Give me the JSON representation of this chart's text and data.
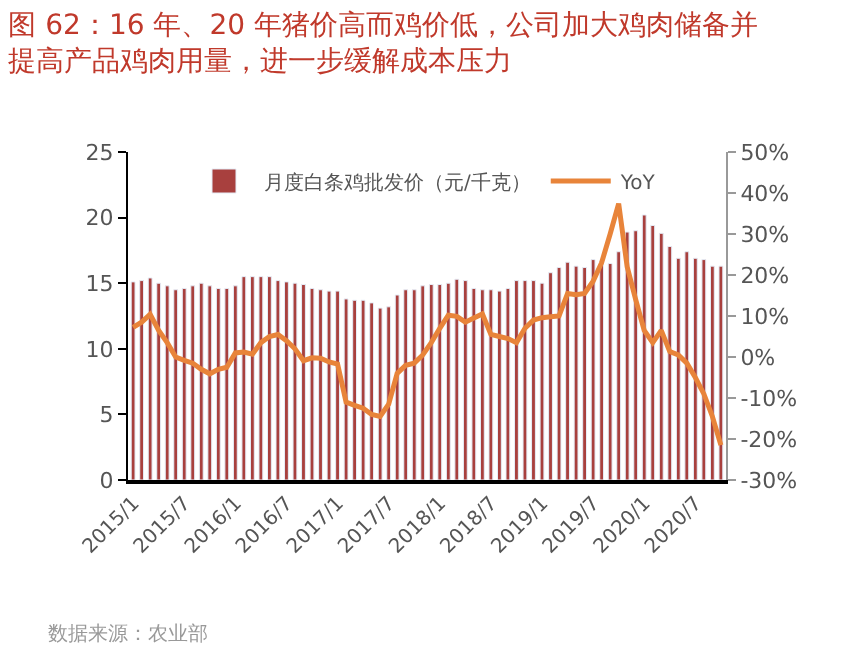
{
  "chart_data": {
    "type": "bar",
    "title": "图 62：16 年、20 年猪价高而鸡价低，公司加大鸡肉储备并提高产品鸡肉用量，进一步缓解成本压力",
    "categories": [
      "2015/1",
      null,
      null,
      null,
      null,
      null,
      "2015/7",
      null,
      null,
      null,
      null,
      null,
      "2016/1",
      null,
      null,
      null,
      null,
      null,
      "2016/7",
      null,
      null,
      null,
      null,
      null,
      "2017/1",
      null,
      null,
      null,
      null,
      null,
      "2017/7",
      null,
      null,
      null,
      null,
      null,
      "2018/1",
      null,
      null,
      null,
      null,
      null,
      "2018/7",
      null,
      null,
      null,
      null,
      null,
      "2019/1",
      null,
      null,
      null,
      null,
      null,
      "2019/7",
      null,
      null,
      null,
      null,
      null,
      "2020/1",
      null,
      null,
      null,
      null,
      null,
      "2020/7",
      null,
      null,
      null
    ],
    "series": [
      {
        "name": "月度白条鸡批发价（元/千克）",
        "color": "#a8403e",
        "values": [
          15.1,
          15.2,
          15.4,
          15.0,
          14.8,
          14.5,
          14.6,
          14.8,
          15.0,
          14.8,
          14.6,
          14.6,
          14.8,
          15.5,
          15.5,
          15.5,
          15.5,
          15.2,
          15.1,
          15.0,
          14.9,
          14.6,
          14.5,
          14.4,
          14.4,
          13.8,
          13.7,
          13.7,
          13.5,
          13.1,
          13.2,
          14.1,
          14.5,
          14.5,
          14.8,
          14.9,
          14.9,
          15.0,
          15.3,
          15.2,
          14.6,
          14.5,
          14.5,
          14.4,
          14.6,
          15.2,
          15.2,
          15.2,
          15.0,
          15.8,
          16.2,
          16.6,
          16.3,
          16.2,
          16.8,
          16.7,
          16.5,
          17.4,
          18.9,
          19.0,
          20.2,
          19.4,
          18.8,
          17.8,
          16.9,
          17.4,
          16.9,
          16.8,
          16.3,
          16.3
        ]
      },
      {
        "name": "YoY",
        "type": "line",
        "axis": "y2",
        "color": "#e8843a",
        "values": [
          7.2,
          8.5,
          10.4,
          6.5,
          3.5,
          0,
          -0.8,
          -1.5,
          -3,
          -4.1,
          -3,
          -2.5,
          1,
          1.2,
          0.7,
          3.5,
          5,
          5.5,
          4,
          2,
          -0.9,
          -0.2,
          -0.3,
          -1.2,
          -1.7,
          -11,
          -11.8,
          -12.5,
          -14,
          -14.5,
          -11.5,
          -4,
          -2,
          -1.5,
          0.5,
          3.5,
          7,
          10.2,
          9.9,
          8.5,
          9.5,
          10.5,
          5.5,
          5,
          4.5,
          3.5,
          7,
          9,
          9.6,
          9.8,
          10,
          15.5,
          15.2,
          15.5,
          18.5,
          23,
          30,
          37.4,
          22,
          14,
          6.5,
          3.5,
          6.5,
          1.3,
          0.5,
          -1.5,
          -5,
          -9,
          -14.5,
          -21.5
        ]
      }
    ],
    "ylim": [
      0,
      25
    ],
    "yticks": [
      0,
      5,
      10,
      15,
      20,
      25
    ],
    "y2lim": [
      -30,
      50
    ],
    "y2ticks": [
      {
        "value": -30,
        "label": "-30%"
      },
      {
        "value": -20,
        "label": "-20%"
      },
      {
        "value": -10,
        "label": "-10%"
      },
      {
        "value": 0,
        "label": "0%"
      },
      {
        "value": 10,
        "label": "10%"
      },
      {
        "value": 20,
        "label": "20%"
      },
      {
        "value": 30,
        "label": "30%"
      },
      {
        "value": 40,
        "label": "40%"
      },
      {
        "value": 50,
        "label": "50%"
      }
    ],
    "grid": false,
    "legend": "top",
    "marker": "none",
    "line_style": "solid",
    "annotations": [
      "数据来源：农业部"
    ]
  }
}
